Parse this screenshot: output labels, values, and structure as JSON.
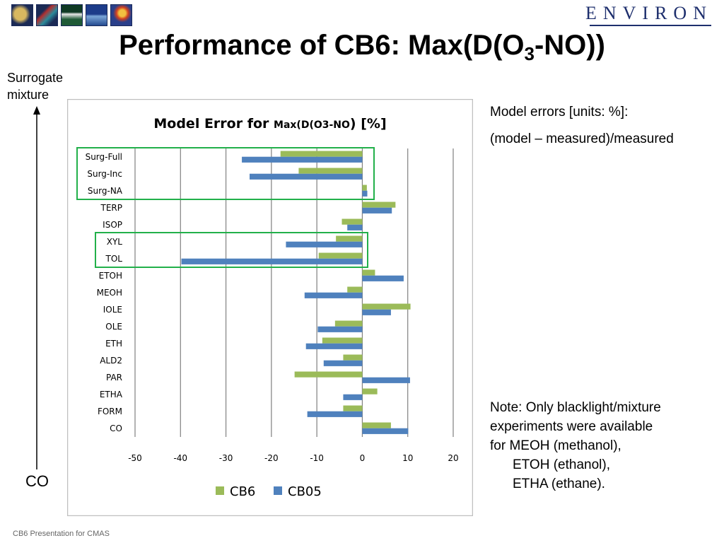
{
  "page": {
    "thumbnail_icons": [
      "photo-thumbnail-1",
      "photo-thumbnail-2",
      "photo-thumbnail-3",
      "photo-thumbnail-4",
      "photo-thumbnail-5"
    ],
    "logo_text": "ENVIRON",
    "title_pre": "Performance of CB6: Max(D(O",
    "title_sub": "3",
    "title_post": "-NO))",
    "surrogate_line1": "Surrogate",
    "surrogate_line2": "mixture",
    "co_axis_label": "CO",
    "model_errors_line1": "Model errors [units: %]:",
    "model_errors_line2": "(model – measured)/measured",
    "note_line1": "Note: Only blacklight/mixture",
    "note_line2": "experiments were available",
    "note_line3": "for MEOH (methanol),",
    "note_line4": "ETOH (ethanol),",
    "note_line5": "ETHA (ethane).",
    "footer": "CB6 Presentation for CMAS"
  },
  "chart_data": {
    "type": "bar",
    "orientation": "horizontal",
    "title_main": "Model Error for ",
    "title_small": "Max(D(O3-NO",
    "title_end": ") [%]",
    "categories": [
      "Surg-Full",
      "Surg-Inc",
      "Surg-NA",
      "TERP",
      "ISOP",
      "XYL",
      "TOL",
      "ETOH",
      "MEOH",
      "IOLE",
      "OLE",
      "ETH",
      "ALD2",
      "PAR",
      "ETHA",
      "FORM",
      "CO"
    ],
    "series": [
      {
        "name": "CB6",
        "color": "#9bbb59",
        "values": [
          -18,
          -14,
          1,
          7.3,
          -4.5,
          -5.8,
          -9.6,
          2.8,
          -3.3,
          10.6,
          -6,
          -8.8,
          -4.2,
          -14.9,
          3.3,
          -4.2,
          6.3
        ]
      },
      {
        "name": "CB05",
        "color": "#4f81bd",
        "values": [
          -26.5,
          -24.8,
          1.1,
          6.5,
          -3.3,
          -16.8,
          -39.8,
          9.1,
          -12.7,
          6.3,
          -9.8,
          -12.4,
          -8.5,
          10.5,
          -4.2,
          -12.1,
          10.1
        ]
      }
    ],
    "xlim": [
      -50,
      20
    ],
    "xticks": [
      -50,
      -40,
      -30,
      -20,
      -10,
      0,
      10,
      20
    ],
    "grid": "vertical",
    "legend": "bottom",
    "highlight_groups": [
      [
        "Surg-Full",
        "Surg-NA"
      ],
      [
        "XYL",
        "TOL"
      ]
    ],
    "highlight_color": "#22b04a"
  }
}
